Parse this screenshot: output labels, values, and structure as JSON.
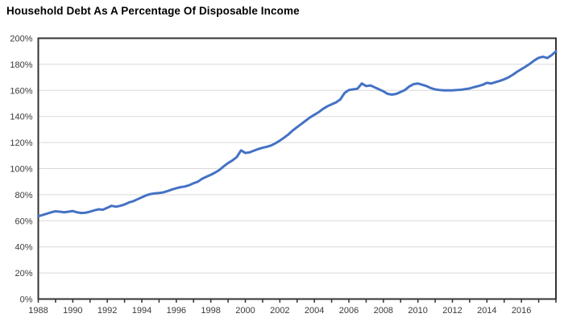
{
  "header": {
    "title": "Household Debt As A Percentage Of Disposable Income"
  },
  "chart_data": {
    "type": "line",
    "title": "Household Debt As A Percentage Of Disposable Income",
    "xlabel": "",
    "ylabel": "",
    "xlim": [
      1988,
      2018
    ],
    "ylim": [
      0,
      200
    ],
    "y_ticks": [
      0,
      20,
      40,
      60,
      80,
      100,
      120,
      140,
      160,
      180,
      200
    ],
    "y_tick_suffix": "%",
    "x_tick_label_years": [
      1988,
      1990,
      1992,
      1994,
      1996,
      1998,
      2000,
      2002,
      2004,
      2006,
      2008,
      2010,
      2012,
      2014,
      2016
    ],
    "minor_x_tick_every_years": 1,
    "grid": "horizontal",
    "legend_position": "none",
    "line_color": "#4472C4",
    "line_width": 3,
    "gridline_color": "#D9D9D9",
    "axis_border_color": "#333333",
    "tick_label_color": "#3a3a3a",
    "x": [
      1988.0,
      1988.25,
      1988.5,
      1988.75,
      1989.0,
      1989.25,
      1989.5,
      1989.75,
      1990.0,
      1990.25,
      1990.5,
      1990.75,
      1991.0,
      1991.25,
      1991.5,
      1991.75,
      1992.0,
      1992.25,
      1992.5,
      1992.75,
      1993.0,
      1993.25,
      1993.5,
      1993.75,
      1994.0,
      1994.25,
      1994.5,
      1994.75,
      1995.0,
      1995.25,
      1995.5,
      1995.75,
      1996.0,
      1996.25,
      1996.5,
      1996.75,
      1997.0,
      1997.25,
      1997.5,
      1997.75,
      1998.0,
      1998.25,
      1998.5,
      1998.75,
      1999.0,
      1999.25,
      1999.5,
      1999.75,
      2000.0,
      2000.25,
      2000.5,
      2000.75,
      2001.0,
      2001.25,
      2001.5,
      2001.75,
      2002.0,
      2002.25,
      2002.5,
      2002.75,
      2003.0,
      2003.25,
      2003.5,
      2003.75,
      2004.0,
      2004.25,
      2004.5,
      2004.75,
      2005.0,
      2005.25,
      2005.5,
      2005.75,
      2006.0,
      2006.25,
      2006.5,
      2006.75,
      2007.0,
      2007.25,
      2007.5,
      2007.75,
      2008.0,
      2008.25,
      2008.5,
      2008.75,
      2009.0,
      2009.25,
      2009.5,
      2009.75,
      2010.0,
      2010.25,
      2010.5,
      2010.75,
      2011.0,
      2011.25,
      2011.5,
      2011.75,
      2012.0,
      2012.25,
      2012.5,
      2012.75,
      2013.0,
      2013.25,
      2013.5,
      2013.75,
      2014.0,
      2014.25,
      2014.5,
      2014.75,
      2015.0,
      2015.25,
      2015.5,
      2015.75,
      2016.0,
      2016.25,
      2016.5,
      2016.75,
      2017.0,
      2017.25,
      2017.5,
      2017.75,
      2018.0
    ],
    "values": [
      63.5,
      64.5,
      65.5,
      66.5,
      67.3,
      67.0,
      66.5,
      67.0,
      67.5,
      66.5,
      66.0,
      66.2,
      67.0,
      68.0,
      68.8,
      68.5,
      70.0,
      71.5,
      70.8,
      71.5,
      72.5,
      74.0,
      75.0,
      76.5,
      78.0,
      79.5,
      80.5,
      81.0,
      81.3,
      81.8,
      82.8,
      84.0,
      85.0,
      85.8,
      86.3,
      87.3,
      88.8,
      90.0,
      92.3,
      93.8,
      95.3,
      97.0,
      99.0,
      101.8,
      104.3,
      106.3,
      108.8,
      114.0,
      112.0,
      112.5,
      113.8,
      115.0,
      116.0,
      116.8,
      117.8,
      119.5,
      121.5,
      123.8,
      126.3,
      129.3,
      131.8,
      134.3,
      136.8,
      139.3,
      141.3,
      143.3,
      145.8,
      147.8,
      149.3,
      150.8,
      153.0,
      158.0,
      160.3,
      160.8,
      161.3,
      165.3,
      163.3,
      163.8,
      162.3,
      160.8,
      159.3,
      157.3,
      156.8,
      157.3,
      158.8,
      160.3,
      163.0,
      164.8,
      165.3,
      164.3,
      163.3,
      161.8,
      160.8,
      160.3,
      160.0,
      160.0,
      160.0,
      160.3,
      160.5,
      161.0,
      161.5,
      162.5,
      163.3,
      164.3,
      165.8,
      165.3,
      166.3,
      167.3,
      168.5,
      170.0,
      172.0,
      174.3,
      176.3,
      178.3,
      180.5,
      183.0,
      185.0,
      185.8,
      184.8,
      187.0,
      190.0
    ]
  }
}
